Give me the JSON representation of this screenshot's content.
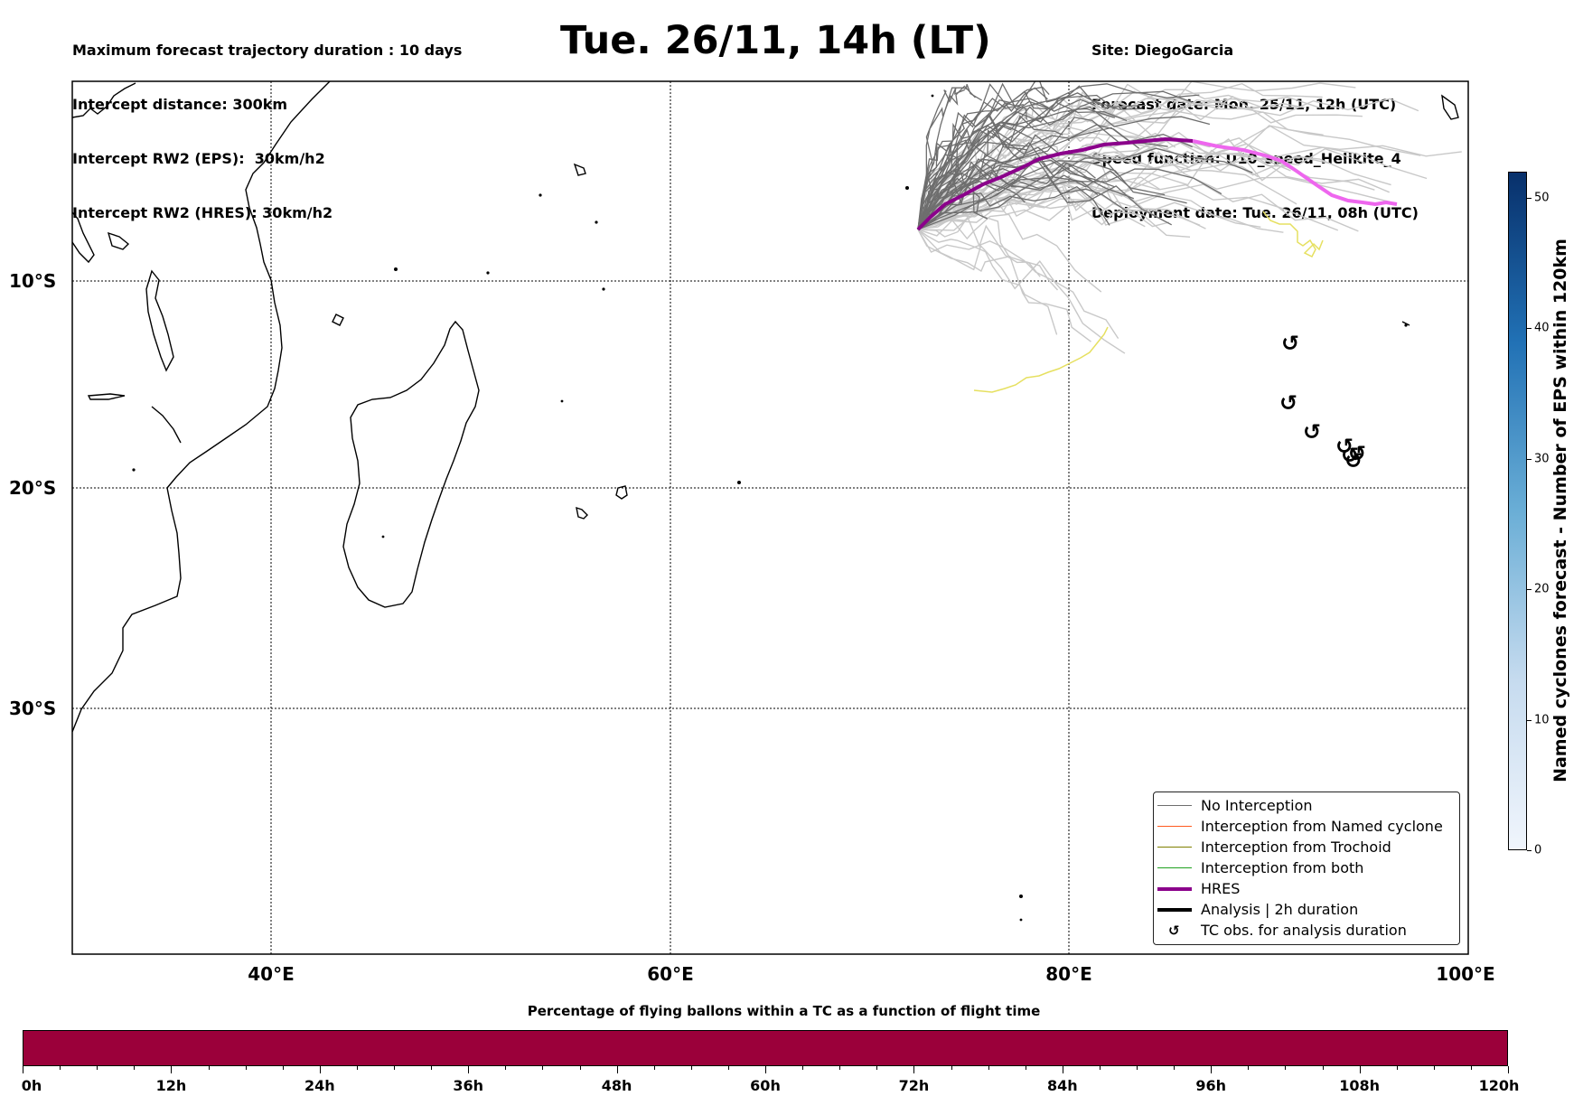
{
  "header": {
    "left_lines": [
      "Maximum forecast trajectory duration : 10 days",
      "Intercept distance: 300km",
      "Intercept RW2 (EPS):  30km/h2",
      "Intercept RW2 (HRES): 30km/h2"
    ],
    "title": "Tue. 26/11, 14h (LT)",
    "right_lines": [
      "Site: DiegoGarcia",
      "Forecast date: Mon. 25/11, 12h (UTC)",
      "Speed function: U10_speed_Helikite_4",
      "Deployment date: Tue. 26/11, 08h (UTC)"
    ]
  },
  "map": {
    "lon_labels": [
      "40°E",
      "60°E",
      "80°E",
      "100°E"
    ],
    "lat_labels": [
      "10°S",
      "20°S",
      "30°S"
    ],
    "cyclone_symbol": "↺",
    "colors": {
      "no_interception": "#6e6e6e",
      "no_interception_light": "#c8c8c8",
      "named_cyclone": "#ff5a1f",
      "trochoid": "#808000",
      "both": "#1fa01f",
      "hres": "#8b008b",
      "hres_light": "#ee66ee",
      "analysis": "#000000",
      "yellow_track": "#e6e060"
    }
  },
  "legend": {
    "items": [
      {
        "label": "No Interception",
        "style": "thin",
        "color": "#6e6e6e"
      },
      {
        "label": "Interception from Named cyclone",
        "style": "thin",
        "color": "#ff5a1f"
      },
      {
        "label": "Interception from Trochoid",
        "style": "thin",
        "color": "#808000"
      },
      {
        "label": "Interception from both",
        "style": "thin",
        "color": "#1fa01f"
      },
      {
        "label": "HRES",
        "style": "thick",
        "color": "#8b008b"
      },
      {
        "label": "Analysis | 2h duration",
        "style": "thick",
        "color": "#000000"
      },
      {
        "label": "TC obs. for analysis duration",
        "style": "symbol",
        "symbol": "↺"
      }
    ]
  },
  "colorbar": {
    "label": "Named cyclones forecast - Number of EPS within 120km",
    "ticks": [
      "0",
      "10",
      "20",
      "30",
      "40",
      "50"
    ],
    "range": [
      0,
      52
    ]
  },
  "bottom": {
    "title": "Percentage of flying ballons within a TC as a function of flight time",
    "ticks": [
      "0h",
      "12h",
      "24h",
      "36h",
      "48h",
      "60h",
      "72h",
      "84h",
      "96h",
      "108h",
      "120h"
    ],
    "fill_color": "#9b003a"
  }
}
